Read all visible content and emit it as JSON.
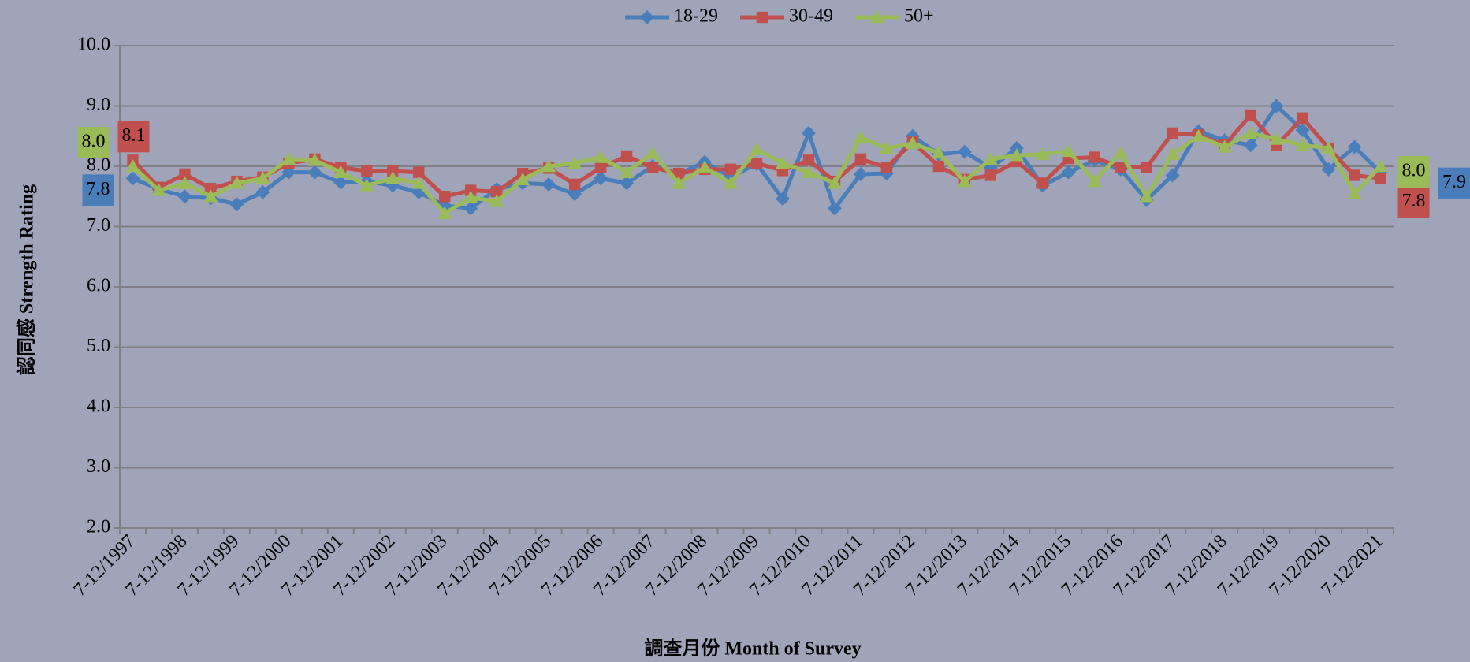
{
  "chart_data": {
    "type": "line",
    "ylabel": "認同感 Strength Rating",
    "xlabel": "調查月份 Month of Survey",
    "categories": [
      "7-12/1997",
      null,
      "7-12/1998",
      null,
      "7-12/1999",
      null,
      "7-12/2000",
      null,
      "7-12/2001",
      null,
      "7-12/2002",
      null,
      "7-12/2003",
      null,
      "7-12/2004",
      null,
      "7-12/2005",
      null,
      "7-12/2006",
      null,
      "7-12/2007",
      null,
      "7-12/2008",
      null,
      "7-12/2009",
      null,
      "7-12/2010",
      null,
      "7-12/2011",
      null,
      "7-12/2012",
      null,
      "7-12/2013",
      null,
      "7-12/2014",
      null,
      "7-12/2015",
      null,
      "7-12/2016",
      null,
      "7-12/2017",
      null,
      "7-12/2018",
      null,
      "7-12/2019",
      null,
      "7-12/2020",
      null,
      "7-12/2021"
    ],
    "ylim": [
      2,
      10
    ],
    "yticks": [
      {
        "value": 2,
        "label": "2.0"
      },
      {
        "value": 3,
        "label": "3.0"
      },
      {
        "value": 4,
        "label": "4.0"
      },
      {
        "value": 5,
        "label": "5.0"
      },
      {
        "value": 6,
        "label": "6.0"
      },
      {
        "value": 7,
        "label": "7.0"
      },
      {
        "value": 8,
        "label": "8.0"
      },
      {
        "value": 9,
        "label": "9.0"
      },
      {
        "value": 10,
        "label": "10.0"
      }
    ],
    "grid": true,
    "legend": "top",
    "series": [
      {
        "name": "18-29",
        "color": "#4a7ebb",
        "marker": "diamond",
        "values": [
          7.8,
          7.62,
          7.5,
          7.47,
          7.37,
          7.57,
          7.9,
          7.9,
          7.73,
          7.75,
          7.68,
          7.57,
          7.35,
          7.3,
          7.62,
          7.72,
          7.7,
          7.54,
          7.8,
          7.72,
          8.0,
          7.87,
          8.07,
          7.82,
          8.04,
          7.46,
          8.55,
          7.3,
          7.87,
          7.88,
          8.5,
          8.2,
          8.24,
          7.97,
          8.3,
          7.68,
          7.9,
          8.1,
          7.95,
          7.44,
          7.85,
          8.58,
          8.43,
          8.35,
          9.0,
          8.6,
          7.95,
          8.32,
          7.9
        ],
        "value_labels": [
          "7.8",
          null,
          null,
          null,
          null,
          null,
          null,
          null,
          null,
          null,
          null,
          null,
          null,
          null,
          null,
          null,
          null,
          null,
          null,
          null,
          null,
          null,
          null,
          null,
          null,
          null,
          null,
          null,
          null,
          null,
          null,
          null,
          null,
          null,
          null,
          null,
          null,
          null,
          null,
          null,
          null,
          null,
          null,
          null,
          null,
          null,
          null,
          null,
          "7.9"
        ]
      },
      {
        "name": "30-49",
        "color": "#c0504d",
        "marker": "square",
        "values": [
          8.1,
          7.65,
          7.87,
          7.63,
          7.75,
          7.82,
          8.05,
          8.12,
          7.98,
          7.92,
          7.92,
          7.9,
          7.5,
          7.6,
          7.58,
          7.88,
          7.97,
          7.7,
          7.98,
          8.17,
          7.98,
          7.88,
          7.95,
          7.95,
          8.05,
          7.93,
          8.1,
          7.75,
          8.12,
          7.98,
          8.4,
          8.0,
          7.78,
          7.85,
          8.08,
          7.72,
          8.13,
          8.15,
          7.98,
          7.98,
          8.55,
          8.52,
          8.35,
          8.85,
          8.35,
          8.8,
          8.3,
          7.85,
          7.8
        ],
        "value_labels": [
          "8.1",
          null,
          null,
          null,
          null,
          null,
          null,
          null,
          null,
          null,
          null,
          null,
          null,
          null,
          null,
          null,
          null,
          null,
          null,
          null,
          null,
          null,
          null,
          null,
          null,
          null,
          null,
          null,
          null,
          null,
          null,
          null,
          null,
          null,
          null,
          null,
          null,
          null,
          null,
          null,
          null,
          null,
          null,
          null,
          null,
          null,
          null,
          null,
          "7.8"
        ]
      },
      {
        "name": "50+",
        "color": "#9bbb59",
        "marker": "triangle",
        "values": [
          8.0,
          7.6,
          7.72,
          7.5,
          7.72,
          7.8,
          8.12,
          8.1,
          7.9,
          7.68,
          7.8,
          7.72,
          7.22,
          7.48,
          7.42,
          7.78,
          8.0,
          8.05,
          8.15,
          7.9,
          8.22,
          7.72,
          7.98,
          7.72,
          8.28,
          8.05,
          7.9,
          7.72,
          8.48,
          8.3,
          8.38,
          8.22,
          7.75,
          8.12,
          8.18,
          8.2,
          8.25,
          7.75,
          8.22,
          7.5,
          8.2,
          8.5,
          8.32,
          8.55,
          8.45,
          8.35,
          8.3,
          7.55,
          8.0
        ],
        "value_labels": [
          "8.0",
          null,
          null,
          null,
          null,
          null,
          null,
          null,
          null,
          null,
          null,
          null,
          null,
          null,
          null,
          null,
          null,
          null,
          null,
          null,
          null,
          null,
          null,
          null,
          null,
          null,
          null,
          null,
          null,
          null,
          null,
          null,
          null,
          null,
          null,
          null,
          null,
          null,
          null,
          null,
          null,
          null,
          null,
          null,
          null,
          null,
          null,
          null,
          "8.0"
        ]
      }
    ]
  }
}
